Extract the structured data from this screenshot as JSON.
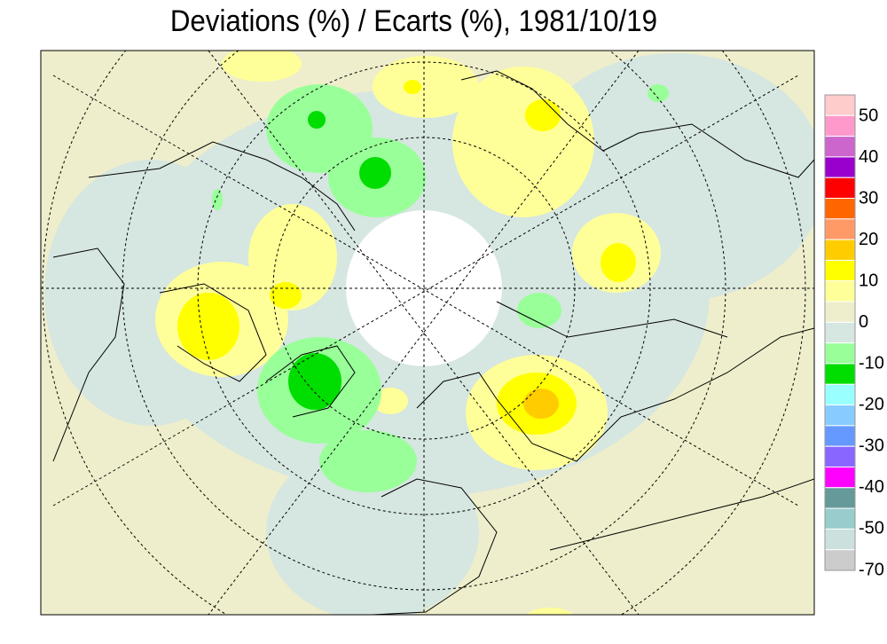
{
  "header": {
    "title": "Deviations (%) / Ecarts (%), 1981/10/19"
  },
  "legend": {
    "labels": [
      "50",
      "40",
      "30",
      "20",
      "10",
      "0",
      "-10",
      "-20",
      "-30",
      "-40",
      "-50",
      "-70"
    ],
    "colors": [
      "#ffcccc",
      "#ff99cc",
      "#cc66cc",
      "#9900cc",
      "#ff0000",
      "#ff6600",
      "#ff9966",
      "#ffcc00",
      "#ffff00",
      "#ffff99",
      "#eeeecc",
      "#d6e6e0",
      "#99ff99",
      "#00dd00",
      "#99ffff",
      "#88ccff",
      "#6699ff",
      "#8866ff",
      "#ff00ff",
      "#669999",
      "#99cccc",
      "#cce0dd",
      "#cccccc"
    ]
  }
}
